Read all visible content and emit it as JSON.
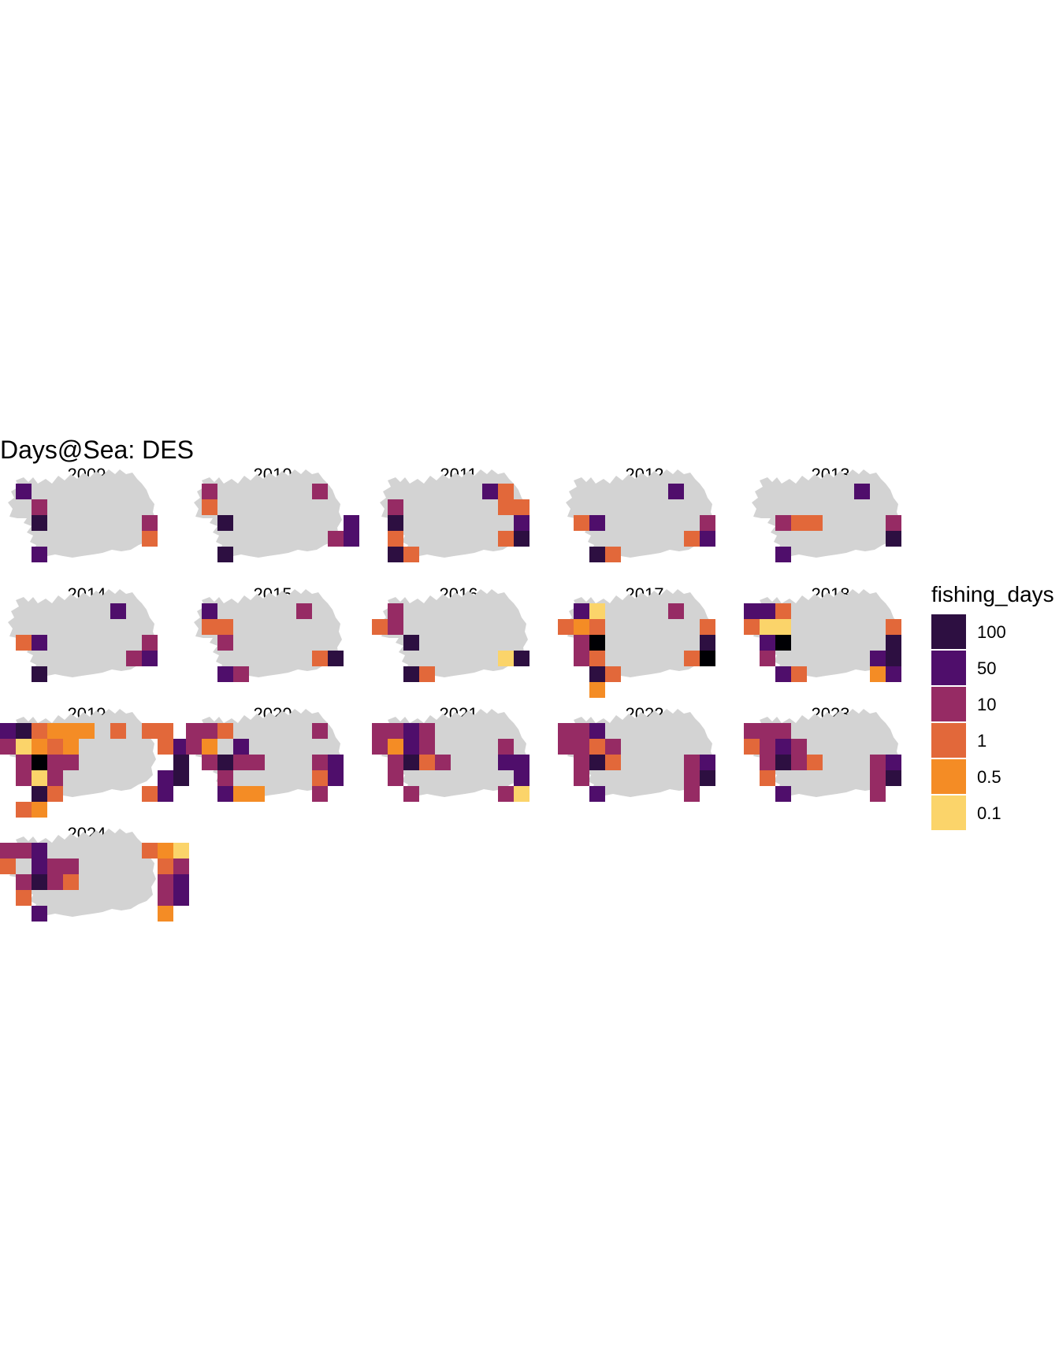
{
  "title": "Days@Sea:  DES",
  "chart_data": {
    "type": "heatmap",
    "title": "Days@Sea:  DES",
    "facet_by": "year",
    "legend": {
      "title": "fishing_days",
      "placement": "right",
      "breaks": [
        {
          "label": "100",
          "color": "#2d0f41"
        },
        {
          "label": "50",
          "color": "#4f0e6b"
        },
        {
          "label": "10",
          "color": "#962b64"
        },
        {
          "label": "1",
          "color": "#e2683a"
        },
        {
          "label": "0.5",
          "color": "#f48c25"
        },
        {
          "label": "0.1",
          "color": "#fbd46a"
        }
      ]
    },
    "colors": {
      "100": "#2d0f41",
      "50": "#4f0e6b",
      "10": "#962b64",
      "1": "#e2683a",
      "0.5": "#f48c25",
      "0.1": "#fbd46a",
      "max": "#000004",
      "land": "#d3d3d3"
    },
    "panels": [
      {
        "year": "2009",
        "cells": [
          [
            1,
            0,
            "50"
          ],
          [
            2,
            1,
            "10"
          ],
          [
            2,
            2,
            "100"
          ],
          [
            2,
            4,
            "50"
          ],
          [
            9,
            2,
            "10"
          ],
          [
            9,
            3,
            "1"
          ]
        ]
      },
      {
        "year": "2010",
        "cells": [
          [
            1,
            0,
            "10"
          ],
          [
            1,
            1,
            "1"
          ],
          [
            2,
            2,
            "100"
          ],
          [
            2,
            4,
            "100"
          ],
          [
            8,
            0,
            "10"
          ],
          [
            9,
            3,
            "10"
          ],
          [
            10,
            2,
            "50"
          ],
          [
            10,
            3,
            "50"
          ]
        ]
      },
      {
        "year": "2011",
        "cells": [
          [
            1,
            1,
            "10"
          ],
          [
            1,
            2,
            "100"
          ],
          [
            1,
            3,
            "1"
          ],
          [
            1,
            4,
            "100"
          ],
          [
            2,
            4,
            "1"
          ],
          [
            7,
            0,
            "50"
          ],
          [
            8,
            0,
            "1"
          ],
          [
            8,
            1,
            "1"
          ],
          [
            9,
            1,
            "1"
          ],
          [
            9,
            2,
            "50"
          ],
          [
            8,
            3,
            "1"
          ],
          [
            9,
            3,
            "100"
          ]
        ]
      },
      {
        "year": "2012",
        "cells": [
          [
            1,
            2,
            "1"
          ],
          [
            2,
            2,
            "50"
          ],
          [
            2,
            4,
            "100"
          ],
          [
            3,
            4,
            "1"
          ],
          [
            7,
            0,
            "50"
          ],
          [
            9,
            2,
            "10"
          ],
          [
            9,
            3,
            "50"
          ],
          [
            8,
            3,
            "1"
          ]
        ]
      },
      {
        "year": "2013",
        "cells": [
          [
            2,
            2,
            "10"
          ],
          [
            3,
            2,
            "1"
          ],
          [
            4,
            2,
            "1"
          ],
          [
            2,
            4,
            "50"
          ],
          [
            7,
            0,
            "50"
          ],
          [
            9,
            2,
            "10"
          ],
          [
            9,
            3,
            "100"
          ]
        ]
      },
      {
        "year": "2014",
        "cells": [
          [
            1,
            2,
            "1"
          ],
          [
            2,
            2,
            "50"
          ],
          [
            2,
            4,
            "100"
          ],
          [
            7,
            0,
            "50"
          ],
          [
            9,
            2,
            "10"
          ],
          [
            8,
            3,
            "10"
          ],
          [
            9,
            3,
            "50"
          ]
        ]
      },
      {
        "year": "2015",
        "cells": [
          [
            1,
            0,
            "50"
          ],
          [
            1,
            1,
            "1"
          ],
          [
            2,
            1,
            "1"
          ],
          [
            2,
            2,
            "10"
          ],
          [
            2,
            4,
            "50"
          ],
          [
            3,
            4,
            "10"
          ],
          [
            7,
            0,
            "10"
          ],
          [
            8,
            3,
            "1"
          ],
          [
            9,
            3,
            "100"
          ]
        ]
      },
      {
        "year": "2016",
        "cells": [
          [
            1,
            0,
            "10"
          ],
          [
            0,
            1,
            "1"
          ],
          [
            1,
            1,
            "10"
          ],
          [
            2,
            2,
            "100"
          ],
          [
            2,
            4,
            "100"
          ],
          [
            3,
            4,
            "1"
          ],
          [
            8,
            3,
            "0.1"
          ],
          [
            9,
            3,
            "100"
          ]
        ]
      },
      {
        "year": "2017",
        "cells": [
          [
            1,
            0,
            "50"
          ],
          [
            2,
            0,
            "0.1"
          ],
          [
            0,
            1,
            "1"
          ],
          [
            1,
            1,
            "0.5"
          ],
          [
            2,
            1,
            "1"
          ],
          [
            1,
            2,
            "10"
          ],
          [
            2,
            2,
            "max"
          ],
          [
            1,
            3,
            "10"
          ],
          [
            2,
            3,
            "1"
          ],
          [
            2,
            4,
            "100"
          ],
          [
            3,
            4,
            "1"
          ],
          [
            2,
            5,
            "0.5"
          ],
          [
            7,
            0,
            "10"
          ],
          [
            9,
            1,
            "1"
          ],
          [
            9,
            2,
            "100"
          ],
          [
            8,
            3,
            "1"
          ],
          [
            9,
            3,
            "max"
          ]
        ]
      },
      {
        "year": "2018",
        "cells": [
          [
            0,
            0,
            "50"
          ],
          [
            1,
            0,
            "50"
          ],
          [
            2,
            0,
            "1"
          ],
          [
            0,
            1,
            "1"
          ],
          [
            1,
            1,
            "0.1"
          ],
          [
            2,
            1,
            "0.1"
          ],
          [
            1,
            2,
            "50"
          ],
          [
            2,
            2,
            "max"
          ],
          [
            1,
            3,
            "10"
          ],
          [
            2,
            4,
            "50"
          ],
          [
            3,
            4,
            "1"
          ],
          [
            9,
            1,
            "1"
          ],
          [
            9,
            2,
            "100"
          ],
          [
            8,
            3,
            "50"
          ],
          [
            9,
            3,
            "100"
          ],
          [
            8,
            4,
            "0.5"
          ],
          [
            9,
            4,
            "50"
          ]
        ]
      },
      {
        "year": "2019",
        "cells": [
          [
            0,
            0,
            "50"
          ],
          [
            1,
            0,
            "100"
          ],
          [
            2,
            0,
            "1"
          ],
          [
            3,
            0,
            "0.5"
          ],
          [
            4,
            0,
            "0.5"
          ],
          [
            5,
            0,
            "0.5"
          ],
          [
            7,
            0,
            "1"
          ],
          [
            9,
            0,
            "1"
          ],
          [
            10,
            0,
            "1"
          ],
          [
            0,
            1,
            "10"
          ],
          [
            1,
            1,
            "0.1"
          ],
          [
            2,
            1,
            "0.5"
          ],
          [
            3,
            1,
            "1"
          ],
          [
            4,
            1,
            "0.5"
          ],
          [
            10,
            1,
            "1"
          ],
          [
            11,
            1,
            "50"
          ],
          [
            1,
            2,
            "10"
          ],
          [
            2,
            2,
            "max"
          ],
          [
            3,
            2,
            "10"
          ],
          [
            4,
            2,
            "10"
          ],
          [
            11,
            2,
            "100"
          ],
          [
            1,
            3,
            "10"
          ],
          [
            2,
            3,
            "0.1"
          ],
          [
            3,
            3,
            "10"
          ],
          [
            10,
            3,
            "50"
          ],
          [
            11,
            3,
            "100"
          ],
          [
            2,
            4,
            "100"
          ],
          [
            3,
            4,
            "1"
          ],
          [
            9,
            4,
            "1"
          ],
          [
            10,
            4,
            "50"
          ],
          [
            1,
            5,
            "1"
          ],
          [
            2,
            5,
            "0.5"
          ]
        ]
      },
      {
        "year": "2020",
        "cells": [
          [
            0,
            0,
            "10"
          ],
          [
            1,
            0,
            "10"
          ],
          [
            2,
            0,
            "1"
          ],
          [
            8,
            0,
            "10"
          ],
          [
            0,
            1,
            "10"
          ],
          [
            1,
            1,
            "0.5"
          ],
          [
            3,
            1,
            "50"
          ],
          [
            1,
            2,
            "10"
          ],
          [
            2,
            2,
            "100"
          ],
          [
            3,
            2,
            "10"
          ],
          [
            4,
            2,
            "10"
          ],
          [
            8,
            2,
            "10"
          ],
          [
            9,
            2,
            "50"
          ],
          [
            2,
            3,
            "10"
          ],
          [
            8,
            3,
            "1"
          ],
          [
            9,
            3,
            "50"
          ],
          [
            2,
            4,
            "50"
          ],
          [
            3,
            4,
            "0.5"
          ],
          [
            4,
            4,
            "0.5"
          ],
          [
            8,
            4,
            "10"
          ]
        ]
      },
      {
        "year": "2021",
        "cells": [
          [
            0,
            0,
            "10"
          ],
          [
            1,
            0,
            "10"
          ],
          [
            2,
            0,
            "50"
          ],
          [
            3,
            0,
            "10"
          ],
          [
            0,
            1,
            "10"
          ],
          [
            1,
            1,
            "0.5"
          ],
          [
            2,
            1,
            "50"
          ],
          [
            3,
            1,
            "10"
          ],
          [
            8,
            1,
            "10"
          ],
          [
            1,
            2,
            "10"
          ],
          [
            2,
            2,
            "100"
          ],
          [
            3,
            2,
            "1"
          ],
          [
            4,
            2,
            "10"
          ],
          [
            8,
            2,
            "50"
          ],
          [
            9,
            2,
            "50"
          ],
          [
            1,
            3,
            "10"
          ],
          [
            9,
            3,
            "50"
          ],
          [
            2,
            4,
            "10"
          ],
          [
            8,
            4,
            "10"
          ],
          [
            9,
            4,
            "0.1"
          ]
        ]
      },
      {
        "year": "2022",
        "cells": [
          [
            0,
            0,
            "10"
          ],
          [
            1,
            0,
            "10"
          ],
          [
            2,
            0,
            "50"
          ],
          [
            0,
            1,
            "10"
          ],
          [
            1,
            1,
            "10"
          ],
          [
            2,
            1,
            "1"
          ],
          [
            3,
            1,
            "10"
          ],
          [
            1,
            2,
            "10"
          ],
          [
            2,
            2,
            "100"
          ],
          [
            3,
            2,
            "1"
          ],
          [
            8,
            2,
            "10"
          ],
          [
            9,
            2,
            "50"
          ],
          [
            1,
            3,
            "10"
          ],
          [
            8,
            3,
            "10"
          ],
          [
            9,
            3,
            "100"
          ],
          [
            2,
            4,
            "50"
          ],
          [
            8,
            4,
            "10"
          ]
        ]
      },
      {
        "year": "2023",
        "cells": [
          [
            0,
            0,
            "10"
          ],
          [
            1,
            0,
            "10"
          ],
          [
            2,
            0,
            "10"
          ],
          [
            0,
            1,
            "1"
          ],
          [
            1,
            1,
            "10"
          ],
          [
            2,
            1,
            "50"
          ],
          [
            3,
            1,
            "10"
          ],
          [
            1,
            2,
            "10"
          ],
          [
            2,
            2,
            "100"
          ],
          [
            3,
            2,
            "10"
          ],
          [
            4,
            2,
            "1"
          ],
          [
            8,
            2,
            "10"
          ],
          [
            9,
            2,
            "50"
          ],
          [
            1,
            3,
            "1"
          ],
          [
            8,
            3,
            "10"
          ],
          [
            9,
            3,
            "100"
          ],
          [
            2,
            4,
            "50"
          ],
          [
            8,
            4,
            "10"
          ]
        ]
      },
      {
        "year": "2024",
        "cells": [
          [
            0,
            0,
            "10"
          ],
          [
            1,
            0,
            "10"
          ],
          [
            2,
            0,
            "50"
          ],
          [
            9,
            0,
            "1"
          ],
          [
            10,
            0,
            "0.5"
          ],
          [
            11,
            0,
            "0.1"
          ],
          [
            0,
            1,
            "1"
          ],
          [
            2,
            1,
            "50"
          ],
          [
            3,
            1,
            "10"
          ],
          [
            4,
            1,
            "10"
          ],
          [
            10,
            1,
            "1"
          ],
          [
            11,
            1,
            "10"
          ],
          [
            1,
            2,
            "10"
          ],
          [
            2,
            2,
            "100"
          ],
          [
            3,
            2,
            "10"
          ],
          [
            4,
            2,
            "1"
          ],
          [
            10,
            2,
            "10"
          ],
          [
            11,
            2,
            "50"
          ],
          [
            1,
            3,
            "1"
          ],
          [
            10,
            3,
            "10"
          ],
          [
            11,
            3,
            "50"
          ],
          [
            2,
            4,
            "50"
          ],
          [
            10,
            4,
            "0.5"
          ]
        ]
      }
    ]
  }
}
